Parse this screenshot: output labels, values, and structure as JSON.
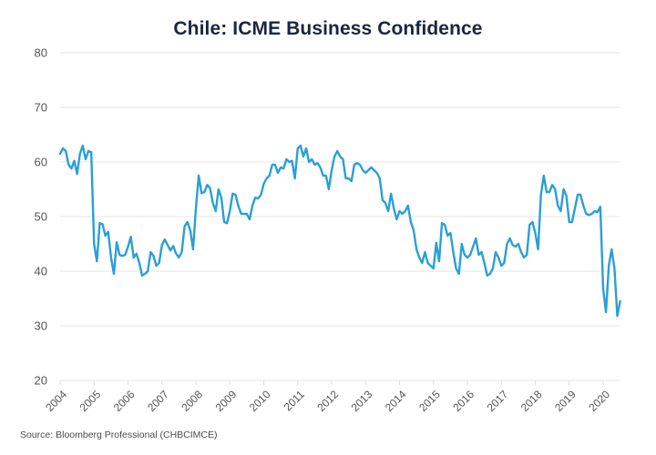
{
  "chart_data": {
    "type": "line",
    "title": "Chile: ICME Business Confidence",
    "xlabel": "",
    "ylabel": "",
    "ylim": [
      20,
      80
    ],
    "yticks": [
      20,
      30,
      40,
      50,
      60,
      70,
      80
    ],
    "xlim": [
      2004,
      2020.5
    ],
    "xticks": [
      "2004",
      "2005",
      "2006",
      "2007",
      "2008",
      "2009",
      "2010",
      "2011",
      "2012",
      "2013",
      "2014",
      "2015",
      "2016",
      "2017",
      "2018",
      "2019",
      "2020"
    ],
    "grid": true,
    "legend": "none",
    "line_color": "#2a9fd6",
    "series": [
      {
        "name": "ICME Business Confidence",
        "start": "2004-01",
        "frequency": "monthly",
        "values": [
          61.5,
          62.5,
          62.0,
          59.5,
          58.8,
          60.2,
          57.8,
          61.5,
          63.0,
          60.5,
          62.0,
          61.8,
          45.0,
          41.8,
          48.8,
          48.6,
          46.5,
          47.2,
          42.5,
          39.5,
          45.3,
          43.0,
          42.8,
          43.0,
          44.5,
          46.3,
          42.5,
          43.2,
          41.5,
          39.2,
          39.5,
          40.0,
          43.5,
          42.8,
          41.0,
          41.5,
          44.8,
          45.8,
          44.8,
          43.8,
          44.6,
          43.2,
          42.5,
          43.5,
          48.2,
          49.0,
          47.5,
          44.0,
          51.5,
          57.5,
          54.3,
          54.5,
          55.8,
          55.2,
          52.5,
          51.0,
          55.0,
          53.5,
          49.0,
          48.8,
          51.0,
          54.2,
          54.0,
          52.0,
          50.5,
          50.5,
          50.5,
          49.5,
          52.0,
          53.5,
          53.3,
          54.0,
          56.0,
          57.0,
          57.5,
          59.5,
          59.5,
          58.0,
          59.0,
          58.8,
          60.5,
          60.0,
          60.2,
          57.0,
          62.5,
          63.0,
          61.0,
          62.5,
          60.0,
          60.5,
          59.5,
          59.8,
          59.0,
          57.5,
          57.5,
          55.0,
          58.5,
          61.0,
          62.0,
          61.0,
          60.5,
          57.0,
          57.0,
          56.5,
          59.5,
          59.8,
          59.5,
          58.5,
          58.0,
          58.5,
          59.0,
          58.5,
          58.0,
          57.0,
          53.0,
          52.5,
          51.0,
          54.2,
          51.5,
          49.5,
          51.0,
          50.5,
          51.0,
          52.0,
          49.0,
          47.5,
          44.0,
          42.5,
          41.5,
          43.5,
          41.5,
          41.0,
          40.5,
          45.2,
          41.8,
          48.8,
          48.5,
          46.5,
          47.0,
          43.5,
          40.5,
          39.5,
          45.0,
          43.0,
          42.5,
          43.0,
          44.5,
          46.0,
          43.0,
          43.5,
          41.5,
          39.2,
          39.5,
          40.5,
          43.5,
          42.5,
          41.0,
          41.5,
          45.0,
          46.0,
          44.8,
          44.5,
          45.0,
          43.5,
          42.5,
          43.0,
          48.5,
          49.0,
          47.0,
          44.0,
          54.0,
          57.5,
          54.5,
          54.5,
          55.8,
          55.0,
          52.0,
          51.0,
          55.0,
          53.8,
          49.0,
          49.0,
          51.5,
          54.0,
          54.0,
          52.0,
          50.5,
          50.3,
          50.5,
          51.0,
          50.8,
          51.8,
          36.8,
          32.5,
          41.0,
          44.0,
          40.5,
          31.8,
          34.5
        ]
      }
    ],
    "source": "Source: Bloomberg Professional (CHBCIMCE)"
  }
}
